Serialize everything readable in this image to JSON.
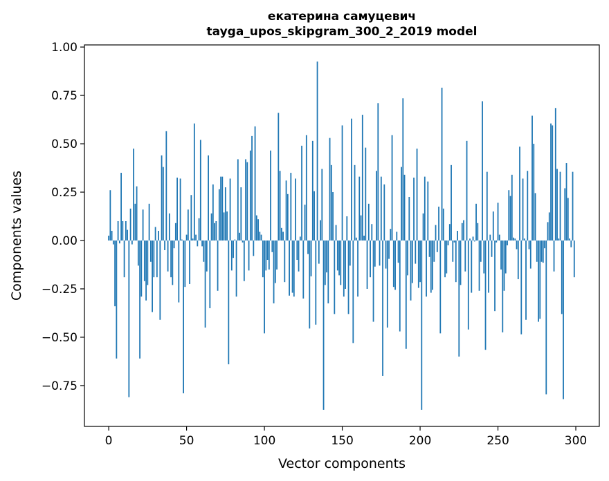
{
  "chart_data": {
    "type": "bar",
    "title": [
      "екатерина самуцевич",
      "tayga_upos_skipgram_300_2_2019 model"
    ],
    "xlabel": "Vector components",
    "ylabel": "Components values",
    "xlim": [
      -15.6,
      315.1
    ],
    "ylim": [
      -0.961,
      1.011
    ],
    "xticks": [
      0,
      50,
      100,
      150,
      200,
      250,
      300
    ],
    "xtick_labels": [
      "0",
      "50",
      "100",
      "150",
      "200",
      "250",
      "300"
    ],
    "yticks": [
      1.0,
      0.75,
      0.5,
      0.25,
      0.0,
      -0.25,
      -0.5,
      -0.75
    ],
    "ytick_labels": [
      "1.00",
      "0.75",
      "0.50",
      "0.25",
      "0.00",
      "−0.25",
      "−0.50",
      "−0.75"
    ],
    "grid": false,
    "bar_color": "#1f77b4",
    "values": [
      0.025,
      0.26,
      0.05,
      -0.02,
      -0.34,
      -0.61,
      0.1,
      -0.015,
      0.35,
      0.1,
      -0.19,
      0.1,
      0.055,
      -0.81,
      0.165,
      -0.02,
      0.475,
      0.19,
      0.28,
      -0.13,
      -0.61,
      -0.29,
      0.16,
      -0.21,
      -0.31,
      -0.23,
      0.19,
      -0.11,
      -0.37,
      -0.19,
      0.07,
      -0.19,
      0.05,
      -0.41,
      0.44,
      0.38,
      -0.05,
      0.565,
      -0.16,
      0.14,
      -0.19,
      -0.23,
      -0.04,
      0.09,
      0.325,
      -0.32,
      0.32,
      0.005,
      -0.79,
      -0.24,
      0.03,
      0.16,
      -0.225,
      0.235,
      0.01,
      0.605,
      0.03,
      -0.03,
      0.115,
      0.52,
      -0.03,
      -0.11,
      -0.45,
      -0.16,
      0.44,
      -0.35,
      0.14,
      0.29,
      0.09,
      0.1,
      -0.26,
      0.265,
      0.33,
      0.33,
      0.145,
      0.275,
      0.15,
      -0.64,
      0.32,
      -0.155,
      -0.09,
      0.005,
      -0.29,
      0.42,
      0.04,
      0.275,
      -0.01,
      -0.21,
      0.42,
      0.405,
      -0.155,
      0.465,
      0.54,
      -0.08,
      0.59,
      0.13,
      0.11,
      0.045,
      0.03,
      -0.19,
      -0.48,
      -0.155,
      -0.1,
      -0.15,
      0.465,
      -0.06,
      -0.325,
      -0.22,
      -0.15,
      0.66,
      0.36,
      0.065,
      0.045,
      -0.215,
      0.31,
      0.24,
      -0.285,
      0.35,
      -0.27,
      -0.29,
      0.32,
      -0.1,
      -0.16,
      0.02,
      0.49,
      -0.3,
      0.185,
      0.545,
      -0.07,
      -0.455,
      -0.185,
      0.515,
      0.255,
      -0.435,
      0.925,
      -0.12,
      0.105,
      0.37,
      -0.875,
      -0.23,
      -0.165,
      -0.325,
      0.53,
      0.39,
      0.25,
      -0.38,
      0.08,
      -0.155,
      -0.18,
      -0.23,
      0.595,
      -0.29,
      -0.25,
      0.125,
      -0.38,
      -0.13,
      0.63,
      -0.53,
      0.39,
      0.015,
      -0.29,
      0.33,
      0.13,
      0.65,
      0.025,
      0.48,
      -0.25,
      0.19,
      -0.19,
      0.085,
      -0.42,
      -0.135,
      0.36,
      0.71,
      -0.13,
      0.33,
      -0.7,
      0.29,
      -0.145,
      -0.45,
      -0.095,
      0.06,
      0.545,
      -0.24,
      -0.255,
      0.045,
      -0.115,
      -0.47,
      0.38,
      0.735,
      0.34,
      -0.56,
      -0.18,
      0.225,
      -0.31,
      -0.22,
      0.325,
      -0.12,
      0.475,
      -0.245,
      -0.215,
      -0.875,
      0.14,
      0.33,
      -0.29,
      0.305,
      -0.085,
      -0.27,
      -0.255,
      -0.11,
      0.08,
      -0.06,
      0.175,
      -0.48,
      0.79,
      0.165,
      -0.19,
      -0.17,
      -0.025,
      0.085,
      0.39,
      -0.11,
      -0.01,
      -0.215,
      0.05,
      -0.6,
      -0.23,
      0.09,
      0.105,
      -0.16,
      0.515,
      -0.46,
      0.01,
      -0.27,
      0.02,
      -0.005,
      0.19,
      0.09,
      -0.26,
      -0.11,
      0.72,
      -0.17,
      -0.565,
      0.355,
      -0.27,
      0.03,
      -0.085,
      0.15,
      -0.365,
      -0.01,
      0.195,
      0.03,
      -0.15,
      -0.475,
      -0.26,
      -0.17,
      -0.025,
      0.26,
      0.23,
      0.34,
      0.015,
      0.01,
      -0.045,
      -0.2,
      0.485,
      -0.485,
      0.32,
      0.01,
      -0.41,
      0.36,
      -0.045,
      -0.145,
      0.645,
      0.5,
      0.245,
      -0.11,
      -0.42,
      -0.405,
      -0.11,
      -0.115,
      -0.04,
      -0.795,
      0.095,
      0.145,
      0.605,
      0.595,
      -0.16,
      0.685,
      0.37,
      0.01,
      0.355,
      -0.38,
      -0.82,
      0.27,
      0.4,
      0.22,
      0.01,
      -0.035,
      0.355,
      -0.19
    ]
  }
}
